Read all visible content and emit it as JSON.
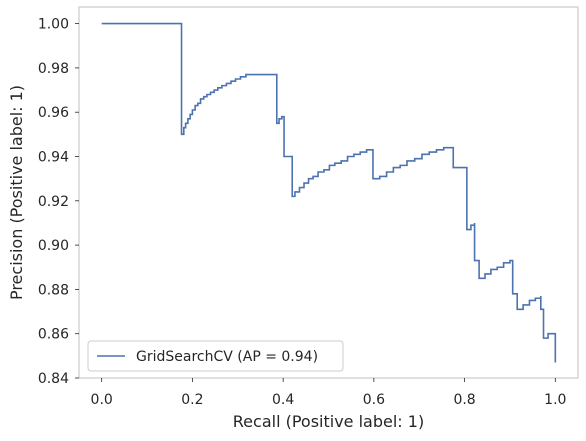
{
  "chart_data": {
    "type": "line",
    "step": true,
    "xlabel": "Recall (Positive label: 1)",
    "ylabel": "Precision (Positive label: 1)",
    "xlim": [
      -0.05,
      1.05
    ],
    "ylim": [
      0.84,
      1.0075
    ],
    "x_ticks": [
      0.0,
      0.2,
      0.4,
      0.6,
      0.8,
      1.0
    ],
    "x_tick_labels": [
      "0.0",
      "0.2",
      "0.4",
      "0.6",
      "0.8",
      "1.0"
    ],
    "y_ticks": [
      0.84,
      0.86,
      0.88,
      0.9,
      0.92,
      0.94,
      0.96,
      0.98,
      1.0
    ],
    "y_tick_labels": [
      "0.84",
      "0.86",
      "0.88",
      "0.90",
      "0.92",
      "0.94",
      "0.96",
      "0.98",
      "1.00"
    ],
    "grid": false,
    "legend_position": "lower-left",
    "series": [
      {
        "name": "GridSearchCV (AP = 0.94)",
        "color": "#4c72b0",
        "x": [
          0.0,
          0.176,
          0.176,
          0.181,
          0.185,
          0.19,
          0.195,
          0.2,
          0.206,
          0.212,
          0.218,
          0.225,
          0.232,
          0.24,
          0.248,
          0.256,
          0.265,
          0.275,
          0.285,
          0.295,
          0.306,
          0.318,
          0.33,
          0.342,
          0.354,
          0.365,
          0.375,
          0.386,
          0.386,
          0.391,
          0.397,
          0.402,
          0.402,
          0.42,
          0.42,
          0.426,
          0.426,
          0.436,
          0.446,
          0.456,
          0.466,
          0.477,
          0.49,
          0.502,
          0.514,
          0.528,
          0.542,
          0.556,
          0.57,
          0.584,
          0.598,
          0.598,
          0.613,
          0.628,
          0.643,
          0.658,
          0.673,
          0.69,
          0.706,
          0.722,
          0.738,
          0.754,
          0.77,
          0.775,
          0.775,
          0.805,
          0.805,
          0.814,
          0.822,
          0.822,
          0.832,
          0.832,
          0.845,
          0.858,
          0.872,
          0.886,
          0.9,
          0.906,
          0.906,
          0.916,
          0.916,
          0.929,
          0.943,
          0.956,
          0.968,
          0.968,
          0.974,
          0.984,
          1.0
        ],
        "y": [
          1.0,
          1.0,
          0.95,
          0.953,
          0.955,
          0.957,
          0.959,
          0.961,
          0.963,
          0.964,
          0.966,
          0.967,
          0.968,
          0.969,
          0.97,
          0.971,
          0.972,
          0.973,
          0.974,
          0.975,
          0.976,
          0.977,
          0.977,
          0.977,
          0.977,
          0.977,
          0.977,
          0.977,
          0.955,
          0.957,
          0.958,
          0.958,
          0.94,
          0.94,
          0.922,
          0.922,
          0.924,
          0.926,
          0.928,
          0.93,
          0.931,
          0.933,
          0.934,
          0.936,
          0.937,
          0.938,
          0.94,
          0.941,
          0.942,
          0.943,
          0.943,
          0.93,
          0.931,
          0.933,
          0.935,
          0.936,
          0.938,
          0.939,
          0.941,
          0.942,
          0.943,
          0.944,
          0.944,
          0.944,
          0.935,
          0.935,
          0.907,
          0.909,
          0.91,
          0.893,
          0.893,
          0.885,
          0.887,
          0.889,
          0.89,
          0.892,
          0.893,
          0.893,
          0.878,
          0.878,
          0.871,
          0.873,
          0.875,
          0.876,
          0.877,
          0.871,
          0.858,
          0.86,
          0.847
        ]
      }
    ]
  }
}
